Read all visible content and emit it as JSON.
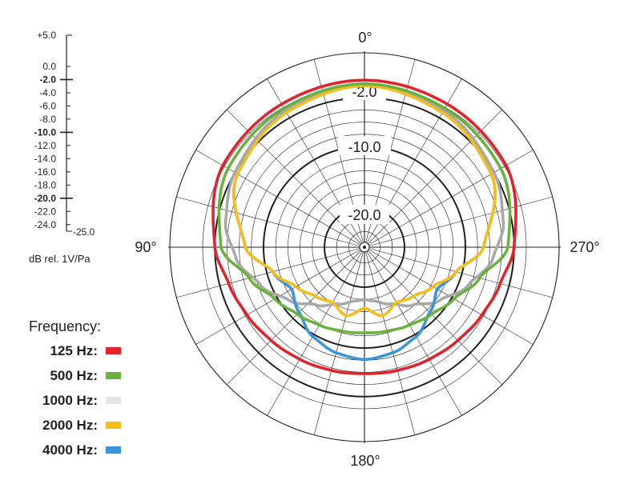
{
  "chart_data": {
    "type": "polar",
    "scale": {
      "title": "dB rel. 1V/Pa",
      "max_label": "+5.0",
      "min_label": "-25.0",
      "labels": [
        "0.0",
        "-2.0",
        "-4.0",
        "-6.0",
        "-8.0",
        "-10.0",
        "-12.0",
        "-14.0",
        "-16.0",
        "-18.0",
        "-20.0",
        "-22.0",
        "-24.0"
      ],
      "bold_labels": [
        "-2.0",
        "-10.0",
        "-20.0"
      ],
      "range": [
        -25,
        5
      ]
    },
    "angle_labels": {
      "top": "0°",
      "left": "90°",
      "right": "270°",
      "bottom": "180°"
    },
    "ring_labels": [
      "-2.0",
      "-10.0",
      "-20.0"
    ],
    "legend": {
      "title": "Frequency:",
      "items": [
        {
          "label": "125 Hz:",
          "color": "#e3232b"
        },
        {
          "label": "500 Hz:",
          "color": "#6ab23e"
        },
        {
          "label": "1000 Hz:",
          "color": "#e5e5e5"
        },
        {
          "label": "2000 Hz:",
          "color": "#f7bd1b"
        },
        {
          "label": "4000 Hz:",
          "color": "#3a96d9"
        }
      ]
    },
    "series": [
      {
        "name": "125 Hz",
        "color": "#e3232b",
        "angles": [
          0,
          30,
          60,
          90,
          105,
          120,
          135,
          150,
          165,
          180
        ],
        "db": [
          0.9,
          0.6,
          0.3,
          -2.0,
          -3.5,
          -4.3,
          -4.9,
          -5.3,
          -5.6,
          -5.8
        ]
      },
      {
        "name": "500 Hz",
        "color": "#6ab23e",
        "angles": [
          0,
          30,
          60,
          90,
          105,
          120,
          135,
          150,
          165,
          180
        ],
        "db": [
          0.3,
          -0.2,
          -0.7,
          -3.0,
          -7.0,
          -9.6,
          -11.0,
          -11.8,
          -12.3,
          -12.5
        ]
      },
      {
        "name": "1000 Hz",
        "color": "#a9a9a9",
        "angles": [
          0,
          30,
          60,
          80,
          95,
          110,
          125,
          140,
          155,
          170,
          180
        ],
        "db": [
          0.0,
          -0.6,
          -2.0,
          -3.4,
          -5.4,
          -8.4,
          -11.4,
          -14.2,
          -16.3,
          -17.6,
          -18.0
        ]
      },
      {
        "name": "2000 Hz",
        "color": "#f7bd1b",
        "angles": [
          0,
          30,
          60,
          90,
          105,
          120,
          135,
          150,
          165,
          180
        ],
        "db": [
          0.0,
          -1.0,
          -2.5,
          -7.0,
          -11.0,
          -13.6,
          -15.2,
          -16.1,
          -14.9,
          -16.6
        ]
      },
      {
        "name": "4000 Hz",
        "color": "#3a96d9",
        "angles": [
          0,
          30,
          60,
          90,
          105,
          120,
          135,
          150,
          165,
          180
        ],
        "db": [
          0.0,
          -1.0,
          -2.5,
          -7.0,
          -11.0,
          -12.8,
          -11.4,
          -9.6,
          -8.6,
          -8.1
        ]
      }
    ]
  }
}
